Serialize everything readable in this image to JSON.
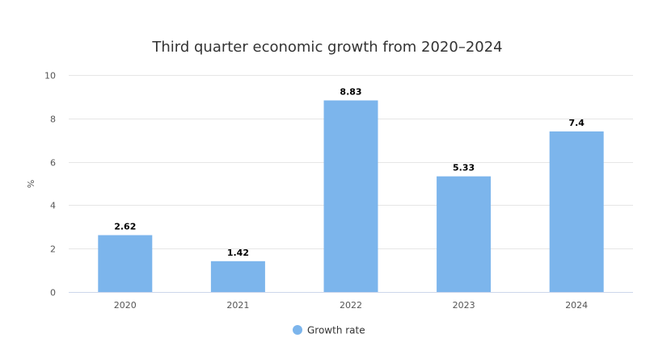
{
  "chart_data": {
    "type": "bar",
    "title": "Third quarter economic growth from 2020–2024",
    "xlabel": "",
    "ylabel": "%",
    "categories": [
      "2020",
      "2021",
      "2022",
      "2023",
      "2024"
    ],
    "series": [
      {
        "name": "Growth rate",
        "values": [
          2.62,
          1.42,
          8.83,
          5.33,
          7.4
        ],
        "color": "#7cb5ec"
      }
    ],
    "ylim": [
      0,
      10
    ],
    "yticks": [
      0,
      2,
      4,
      6,
      8,
      10
    ],
    "grid": true,
    "legend": "bottom-center"
  }
}
